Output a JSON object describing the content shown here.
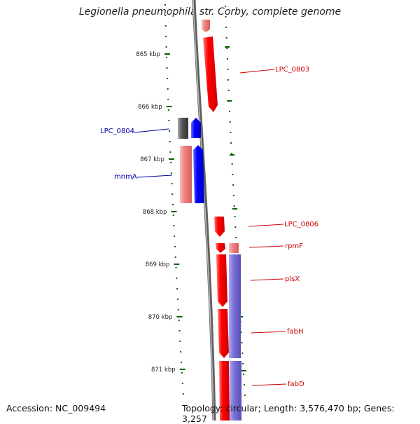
{
  "title": "Legionella pneumophila str. Corby, complete genome",
  "footer": {
    "accession": "Accession: NC_009494",
    "summary": "Topology: circular; Length: 3,576,470 bp; Genes: 3,257"
  },
  "scale": {
    "unit": "kbp",
    "ticks": [
      {
        "label": "865 kbp",
        "kbp": 865
      },
      {
        "label": "866 kbp",
        "kbp": 866
      },
      {
        "label": "867 kbp",
        "kbp": 867
      },
      {
        "label": "868 kbp",
        "kbp": 868
      },
      {
        "label": "869 kbp",
        "kbp": 869
      },
      {
        "label": "870 kbp",
        "kbp": 870
      },
      {
        "label": "871 kbp",
        "kbp": 871
      }
    ]
  },
  "colors": {
    "forward_strand": "#ff0000",
    "reverse_strand": "#0000ff",
    "forward_rna": "#f08080",
    "reverse_gray": "#555555",
    "purple_track": "#7b70d8",
    "backbone": "#808080",
    "tick_green": "#006400",
    "forward_label": "#cc0000",
    "reverse_label": "#0000aa"
  },
  "genes": [
    {
      "name": "LPC_0803",
      "strand": "forward",
      "start_kbp": 864.7,
      "end_kbp": 866.1
    },
    {
      "name": "LPC_0804",
      "strand": "reverse",
      "start_kbp": 866.2,
      "end_kbp": 866.6
    },
    {
      "name": "mnmA",
      "strand": "reverse",
      "start_kbp": 866.7,
      "end_kbp": 867.9
    },
    {
      "name": "LPC_0806",
      "strand": "forward",
      "start_kbp": 868.1,
      "end_kbp": 868.5
    },
    {
      "name": "rpmF",
      "strand": "forward",
      "start_kbp": 868.5,
      "end_kbp": 868.7
    },
    {
      "name": "plsX",
      "strand": "forward",
      "start_kbp": 868.7,
      "end_kbp": 869.7
    },
    {
      "name": "fabH",
      "strand": "forward",
      "start_kbp": 869.7,
      "end_kbp": 870.7
    },
    {
      "name": "fabD",
      "strand": "forward",
      "start_kbp": 870.7,
      "end_kbp": 871.5
    }
  ]
}
